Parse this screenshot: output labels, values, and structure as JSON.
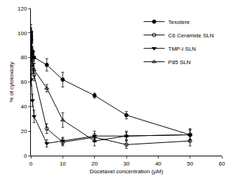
{
  "chart_data": {
    "type": "line",
    "x_label": "Docetaxel concentration (μM)",
    "y_label": "% of cytotoxicity",
    "xlim": [
      0,
      60
    ],
    "xticks": [
      0,
      10,
      20,
      30,
      40,
      50,
      60
    ],
    "ylim": [
      0,
      120
    ],
    "yticks": [
      0,
      20,
      40,
      60,
      80,
      100,
      120
    ],
    "legend": "upper right",
    "grid": false,
    "x": [
      0,
      0.05,
      0.1,
      0.5,
      1,
      5,
      10,
      20,
      30,
      50
    ],
    "series": [
      {
        "name": "Texotere",
        "color": "#000000",
        "marker": "circle",
        "values": [
          100,
          98,
          95,
          85,
          80,
          74,
          62,
          49,
          33,
          17
        ],
        "errors": [
          4,
          3,
          3,
          4,
          5,
          5,
          6,
          2,
          3,
          4
        ]
      },
      {
        "name": "C6 Ceramide SLN",
        "color": "#000000",
        "marker": "circle-open",
        "values": [
          100,
          92,
          84,
          72,
          66,
          22,
          11,
          15,
          9,
          12
        ],
        "errors": [
          4,
          4,
          4,
          5,
          5,
          4,
          3,
          3,
          3,
          4
        ]
      },
      {
        "name": "TMP-I SLN",
        "color": "#000000",
        "marker": "triangle-down",
        "values": [
          96,
          82,
          62,
          45,
          32,
          10,
          12,
          16,
          16,
          17
        ],
        "errors": [
          4,
          5,
          5,
          5,
          5,
          3,
          3,
          4,
          4,
          5
        ]
      },
      {
        "name": "P85 SLN",
        "color": "#000000",
        "marker": "triangle-up-open",
        "values": [
          102,
          94,
          88,
          78,
          70,
          55,
          29,
          12,
          16,
          17
        ],
        "errors": [
          5,
          4,
          4,
          5,
          5,
          3,
          6,
          4,
          3,
          4
        ]
      }
    ]
  }
}
